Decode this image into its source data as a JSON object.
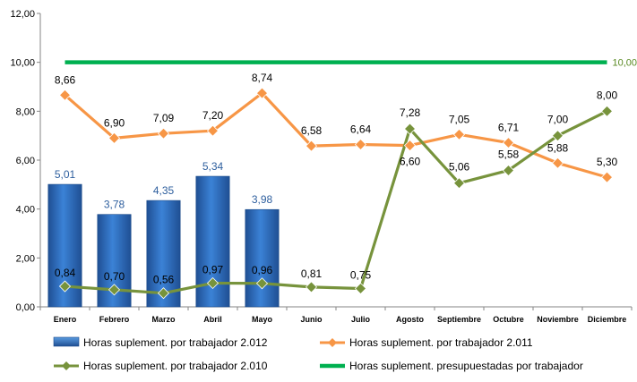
{
  "chart_data": {
    "type": "bar",
    "categories": [
      "Enero",
      "Febrero",
      "Marzo",
      "Abril",
      "Mayo",
      "Junio",
      "Julio",
      "Agosto",
      "Septiembre",
      "Octubre",
      "Noviembre",
      "Diciembre"
    ],
    "ylim": [
      0,
      12
    ],
    "yticks": [
      "0,00",
      "2,00",
      "4,00",
      "6,00",
      "8,00",
      "10,00",
      "12,00"
    ],
    "grid": false,
    "legend_position": "bottom",
    "series": [
      {
        "name": "Horas suplement. por trabajador 2.012",
        "type": "bar",
        "color": "#2e6fbd",
        "values": [
          5.01,
          3.78,
          4.35,
          5.34,
          3.98,
          null,
          null,
          null,
          null,
          null,
          null,
          null
        ],
        "labels": [
          "5,01",
          "3,78",
          "4,35",
          "5,34",
          "3,98",
          "",
          "",
          "",
          "",
          "",
          "",
          ""
        ]
      },
      {
        "name": "Horas suplement. por trabajador 2.011",
        "type": "line",
        "color": "#f79646",
        "values": [
          8.66,
          6.9,
          7.09,
          7.2,
          8.74,
          6.58,
          6.64,
          6.6,
          7.05,
          6.71,
          5.88,
          5.3
        ],
        "labels": [
          "8,66",
          "6,90",
          "7,09",
          "7,20",
          "8,74",
          "6,58",
          "6,64",
          "6,60",
          "7,05",
          "6,71",
          "5,88",
          "5,30"
        ]
      },
      {
        "name": "Horas suplement. por trabajador 2.010",
        "type": "line",
        "color": "#77933c",
        "values": [
          0.84,
          0.7,
          0.56,
          0.97,
          0.96,
          0.81,
          0.75,
          7.28,
          5.06,
          5.58,
          7.0,
          8.0
        ],
        "labels": [
          "0,84",
          "0,70",
          "0,56",
          "0,97",
          "0,96",
          "0,81",
          "0,75",
          "7,28",
          "5,06",
          "5,58",
          "7,00",
          "8,00"
        ]
      },
      {
        "name": "Horas suplement. presupuestadas por trabajador",
        "type": "line",
        "color": "#00b050",
        "values": [
          10,
          10,
          10,
          10,
          10,
          10,
          10,
          10,
          10,
          10,
          10,
          10
        ],
        "end_label": "10,00"
      }
    ]
  }
}
